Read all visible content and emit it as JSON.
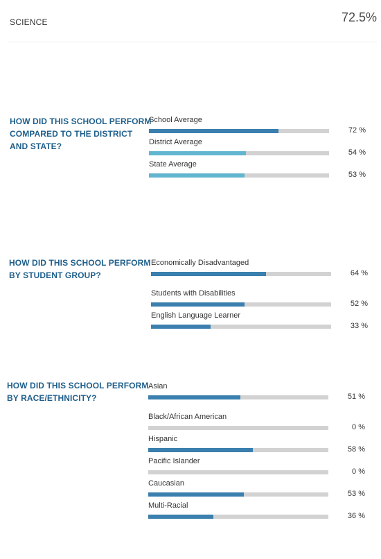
{
  "header": {
    "title": "SCIENCE",
    "value": "72.5%"
  },
  "colors": {
    "dark_bar": "#3a7fae",
    "light_bar": "#62b5cf",
    "track": "#d2d2d2",
    "heading": "#1f5f8b"
  },
  "chart_data": [
    {
      "type": "bar",
      "orientation": "horizontal",
      "title": "HOW DID THIS SCHOOL PERFORM COMPARED TO THE DISTRICT AND STATE?",
      "categories": [
        "School Average",
        "District Average",
        "State Average"
      ],
      "values": [
        72,
        54,
        53
      ],
      "value_labels": [
        "72 %",
        "54 %",
        "53 %"
      ],
      "bar_colors": [
        "dark",
        "light",
        "light"
      ],
      "xlim": [
        0,
        100
      ]
    },
    {
      "type": "bar",
      "orientation": "horizontal",
      "title": "HOW DID THIS SCHOOL PERFORM BY STUDENT GROUP?",
      "categories": [
        "Economically Disadvantaged",
        "Students with Disabilities",
        "English Language Learner"
      ],
      "values": [
        64,
        52,
        33
      ],
      "value_labels": [
        "64 %",
        "52 %",
        "33 %"
      ],
      "bar_colors": [
        "dark",
        "dark",
        "dark"
      ],
      "xlim": [
        0,
        100
      ]
    },
    {
      "type": "bar",
      "orientation": "horizontal",
      "title": "HOW DID THIS SCHOOL PERFORM BY RACE/ETHNICITY?",
      "categories": [
        "Asian",
        "Black/African American",
        "Hispanic",
        "Pacific Islander",
        "Caucasian",
        "Multi-Racial"
      ],
      "values": [
        51,
        0,
        58,
        0,
        53,
        36
      ],
      "value_labels": [
        "51 %",
        "0 %",
        "58 %",
        "0 %",
        "53 %",
        "36 %"
      ],
      "bar_colors": [
        "dark",
        "dark",
        "dark",
        "dark",
        "dark",
        "dark"
      ],
      "xlim": [
        0,
        100
      ]
    }
  ]
}
